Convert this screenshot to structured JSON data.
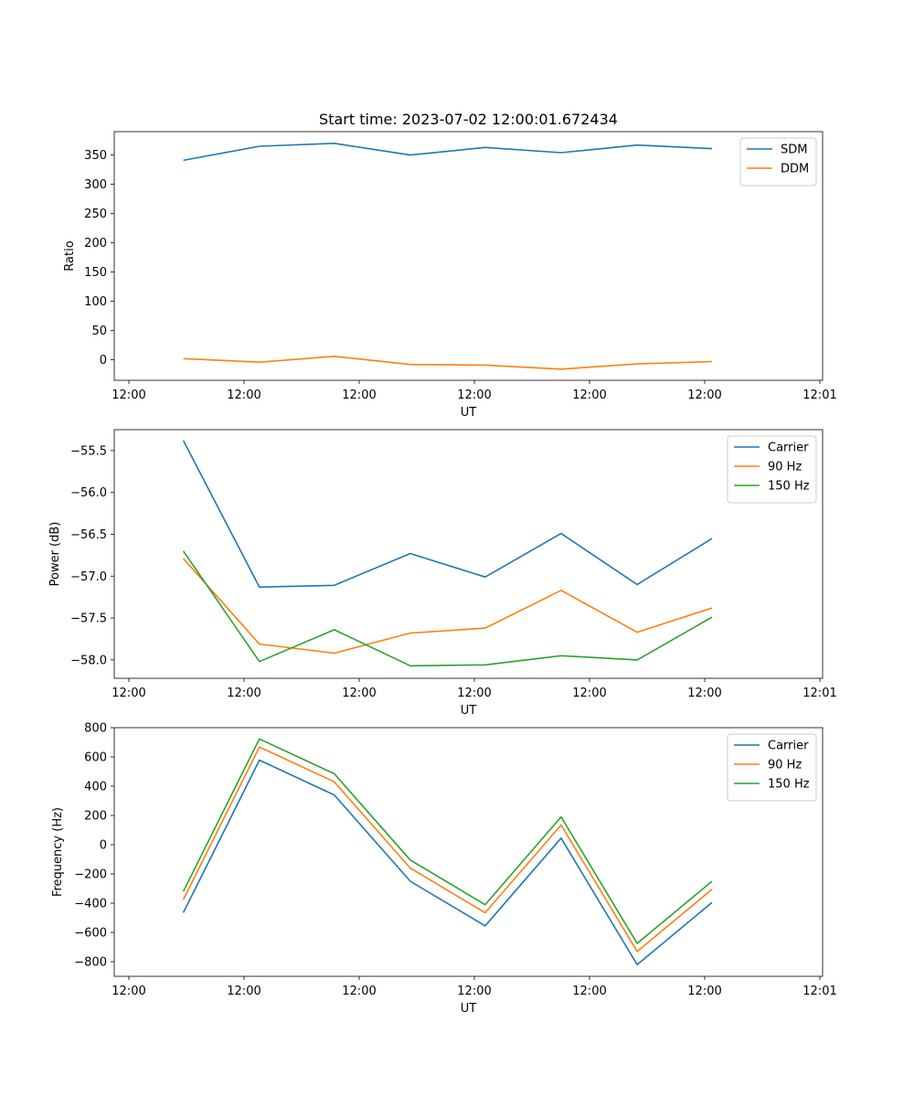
{
  "chart_data": [
    {
      "type": "line",
      "title": "Start time: 2023-07-02 12:00:01.672434",
      "xlabel": "UT",
      "ylabel": "Ratio",
      "x_ticks": [
        "12:00",
        "12:00",
        "12:00",
        "12:00",
        "12:00",
        "12:00",
        "12:00"
      ],
      "x_tick_last": "12:01",
      "ylim": [
        -35,
        390
      ],
      "yticks": [
        0,
        50,
        100,
        150,
        200,
        250,
        300,
        350
      ],
      "ytick_labels": [
        "0",
        "50",
        "100",
        "150",
        "200",
        "250",
        "300",
        "350"
      ],
      "x": [
        0.5,
        1.16,
        1.81,
        2.47,
        3.12,
        3.78,
        4.44,
        5.09
      ],
      "xlim": [
        -0.1,
        6.05
      ],
      "legend_position": "upper-right",
      "series": [
        {
          "name": "SDM",
          "color": "#1f77b4",
          "values": [
            341,
            365,
            370,
            350,
            363,
            354,
            367,
            361
          ]
        },
        {
          "name": "DDM",
          "color": "#ff7f0e",
          "values": [
            2,
            -4,
            6,
            -8,
            -9,
            -16,
            -7,
            -3
          ]
        }
      ]
    },
    {
      "type": "line",
      "title": "",
      "xlabel": "UT",
      "ylabel": "Power (dB)",
      "x_ticks": [
        "12:00",
        "12:00",
        "12:00",
        "12:00",
        "12:00",
        "12:00",
        "12:00"
      ],
      "x_tick_last": "12:01",
      "ylim": [
        -58.22,
        -55.25
      ],
      "yticks": [
        -58.0,
        -57.5,
        -57.0,
        -56.5,
        -56.0,
        -55.5
      ],
      "ytick_labels": [
        "−58.0",
        "−57.5",
        "−57.0",
        "−56.5",
        "−56.0",
        "−55.5"
      ],
      "x": [
        0.5,
        1.16,
        1.81,
        2.47,
        3.12,
        3.78,
        4.44,
        5.09
      ],
      "xlim": [
        -0.1,
        6.05
      ],
      "legend_position": "upper-right",
      "series": [
        {
          "name": "Carrier",
          "color": "#1f77b4",
          "values": [
            -55.38,
            -57.13,
            -57.11,
            -56.73,
            -57.01,
            -56.49,
            -57.1,
            -56.55
          ]
        },
        {
          "name": "90 Hz",
          "color": "#ff7f0e",
          "values": [
            -56.79,
            -57.81,
            -57.92,
            -57.68,
            -57.62,
            -57.17,
            -57.67,
            -57.38
          ]
        },
        {
          "name": "150 Hz",
          "color": "#2ca02c",
          "values": [
            -56.7,
            -58.02,
            -57.64,
            -58.07,
            -58.06,
            -57.95,
            -58.0,
            -57.49
          ]
        }
      ]
    },
    {
      "type": "line",
      "title": "",
      "xlabel": "UT",
      "ylabel": "Frequency (Hz)",
      "x_ticks": [
        "12:00",
        "12:00",
        "12:00",
        "12:00",
        "12:00",
        "12:00",
        "12:00"
      ],
      "x_tick_last": "12:01",
      "ylim": [
        -900,
        800
      ],
      "yticks": [
        -800,
        -600,
        -400,
        -200,
        0,
        200,
        400,
        600,
        800
      ],
      "ytick_labels": [
        "−800",
        "−600",
        "−400",
        "−200",
        "0",
        "200",
        "400",
        "600",
        "800"
      ],
      "x": [
        0.5,
        1.16,
        1.81,
        2.47,
        3.12,
        3.78,
        4.44,
        5.09
      ],
      "xlim": [
        -0.1,
        6.05
      ],
      "legend_position": "upper-right",
      "series": [
        {
          "name": "Carrier",
          "color": "#1f77b4",
          "values": [
            -465,
            578,
            340,
            -250,
            -555,
            45,
            -820,
            -395
          ]
        },
        {
          "name": "90 Hz",
          "color": "#ff7f0e",
          "values": [
            -375,
            668,
            430,
            -160,
            -465,
            135,
            -730,
            -305
          ]
        },
        {
          "name": "150 Hz",
          "color": "#2ca02c",
          "values": [
            -320,
            723,
            485,
            -105,
            -410,
            190,
            -675,
            -250
          ]
        }
      ]
    }
  ]
}
